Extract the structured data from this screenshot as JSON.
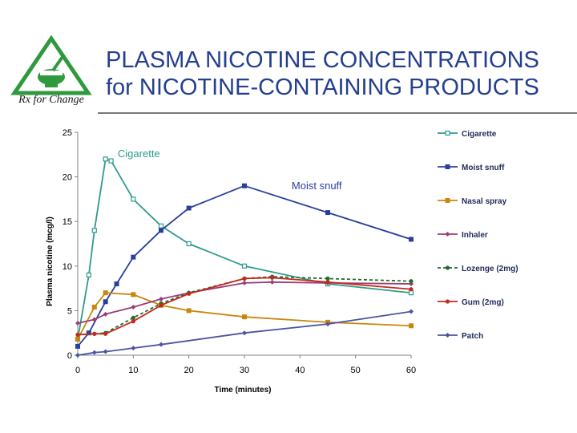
{
  "header": {
    "title_line1": "PLASMA NICOTINE CONCENTRATIONS",
    "title_line2": "for NICOTINE-CONTAINING PRODUCTS",
    "logo_text": "Rx for Change"
  },
  "colors": {
    "title": "#243f8f",
    "Cigarette": "#2e9a8e",
    "Moist snuff": "#2a3f9c",
    "Nasal spray": "#c8870c",
    "Inhaler": "#9a3d77",
    "Lozenge (2mg)": "#1f6e2c",
    "Gum (2mg)": "#c42a1c",
    "Patch": "#4a55a0",
    "logo": "#2f9a3d"
  },
  "chart_data": {
    "type": "line",
    "xlabel": "Time (minutes)",
    "ylabel": "Plasma nicotine (mcg/l)",
    "xlim": [
      0,
      60
    ],
    "ylim": [
      0,
      25
    ],
    "xticks": [
      0,
      10,
      20,
      30,
      40,
      50,
      60
    ],
    "yticks": [
      0,
      5,
      10,
      15,
      20,
      25
    ],
    "grid": false,
    "legend": "right",
    "series": [
      {
        "name": "Cigarette",
        "marker": "square-open",
        "dash": "solid",
        "points": [
          [
            0,
            1.8
          ],
          [
            2,
            9
          ],
          [
            3,
            14
          ],
          [
            5,
            22
          ],
          [
            6,
            21.8
          ],
          [
            10,
            17.5
          ],
          [
            15,
            14.5
          ],
          [
            20,
            12.5
          ],
          [
            30,
            10
          ],
          [
            45,
            8
          ],
          [
            60,
            7
          ]
        ]
      },
      {
        "name": "Moist snuff",
        "marker": "square",
        "dash": "solid",
        "points": [
          [
            0,
            1
          ],
          [
            2,
            2.5
          ],
          [
            5,
            6
          ],
          [
            7,
            8
          ],
          [
            10,
            11
          ],
          [
            15,
            14
          ],
          [
            20,
            16.5
          ],
          [
            30,
            19
          ],
          [
            45,
            16
          ],
          [
            60,
            13
          ]
        ]
      },
      {
        "name": "Nasal spray",
        "marker": "square",
        "dash": "solid",
        "points": [
          [
            0,
            1.8
          ],
          [
            3,
            5.4
          ],
          [
            5,
            7
          ],
          [
            10,
            6.8
          ],
          [
            15,
            5.6
          ],
          [
            20,
            5
          ],
          [
            30,
            4.3
          ],
          [
            45,
            3.7
          ],
          [
            60,
            3.3
          ]
        ]
      },
      {
        "name": "Inhaler",
        "marker": "diamond",
        "dash": "solid",
        "points": [
          [
            0,
            3.6
          ],
          [
            3,
            4
          ],
          [
            5,
            4.6
          ],
          [
            10,
            5.4
          ],
          [
            15,
            6.3
          ],
          [
            20,
            7
          ],
          [
            30,
            8.1
          ],
          [
            35,
            8.2
          ],
          [
            45,
            8.1
          ],
          [
            60,
            8
          ]
        ]
      },
      {
        "name": "Lozenge (2mg)",
        "marker": "circle",
        "dash": "dashed",
        "points": [
          [
            0,
            2.3
          ],
          [
            3,
            2.4
          ],
          [
            5,
            2.5
          ],
          [
            10,
            4.2
          ],
          [
            15,
            5.8
          ],
          [
            20,
            7
          ],
          [
            30,
            8.6
          ],
          [
            35,
            8.8
          ],
          [
            45,
            8.6
          ],
          [
            60,
            8.3
          ]
        ]
      },
      {
        "name": "Gum (2mg)",
        "marker": "circle",
        "dash": "solid",
        "points": [
          [
            0,
            2.3
          ],
          [
            3,
            2.4
          ],
          [
            5,
            2.4
          ],
          [
            10,
            3.8
          ],
          [
            15,
            5.6
          ],
          [
            20,
            6.9
          ],
          [
            30,
            8.6
          ],
          [
            35,
            8.7
          ],
          [
            45,
            8.2
          ],
          [
            60,
            7.4
          ]
        ]
      },
      {
        "name": "Patch",
        "marker": "diamond",
        "dash": "solid",
        "points": [
          [
            0,
            0
          ],
          [
            3,
            0.3
          ],
          [
            5,
            0.4
          ],
          [
            10,
            0.8
          ],
          [
            15,
            1.2
          ],
          [
            30,
            2.5
          ],
          [
            45,
            3.5
          ],
          [
            60,
            4.9
          ]
        ]
      }
    ],
    "annotations": [
      {
        "text": "Cigarette",
        "series": "Cigarette",
        "x": 7.2,
        "y": 22.2
      },
      {
        "text": "Moist snuff",
        "series": "Moist snuff",
        "x": 38.5,
        "y": 18.6
      }
    ]
  }
}
